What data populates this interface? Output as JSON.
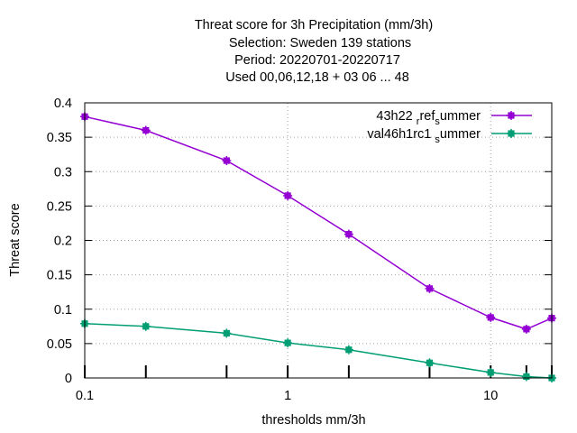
{
  "chart_data": {
    "type": "line",
    "title_lines": [
      "Threat score  for 3h Precipitation (mm/3h)",
      "Selection: Sweden    139 stations",
      "Period: 20220701-20220717",
      "Used  00,06,12,18  + 03 06 ... 48"
    ],
    "xlabel": "thresholds mm/3h",
    "ylabel": "Threat score",
    "x_scale": "log",
    "xlim": [
      0.1,
      20
    ],
    "ylim": [
      0,
      0.4
    ],
    "x_ticks": [
      0.1,
      1,
      10
    ],
    "x_tick_labels": [
      "0.1",
      "1",
      "10"
    ],
    "x_minor_ticks": [
      0.2,
      0.5,
      2,
      5,
      15,
      20
    ],
    "y_ticks": [
      0,
      0.05,
      0.1,
      0.15,
      0.2,
      0.25,
      0.3,
      0.35,
      0.4
    ],
    "y_tick_labels": [
      "0",
      "0.05",
      "0.1",
      "0.15",
      "0.2",
      "0.25",
      "0.3",
      "0.35",
      "0.4"
    ],
    "grid": true,
    "legend_position": "top-right",
    "x": [
      0.1,
      0.2,
      0.5,
      1,
      2,
      5,
      10,
      15,
      20
    ],
    "series": [
      {
        "name": "43h22_ref_summer",
        "legend_main": [
          "43h22 ",
          "ref",
          "ummer"
        ],
        "legend_sub": [
          "r",
          "s"
        ],
        "color": "#9400d3",
        "values": [
          0.38,
          0.36,
          0.316,
          0.265,
          0.209,
          0.13,
          0.088,
          0.071,
          0.087
        ]
      },
      {
        "name": "val46h1rc1_summer",
        "legend_main": [
          "val46h1rc1 ",
          "ummer"
        ],
        "legend_sub": [
          "s"
        ],
        "color": "#009e73",
        "values": [
          0.079,
          0.075,
          0.065,
          0.051,
          0.041,
          0.022,
          0.008,
          0.002,
          0.0
        ]
      }
    ]
  }
}
